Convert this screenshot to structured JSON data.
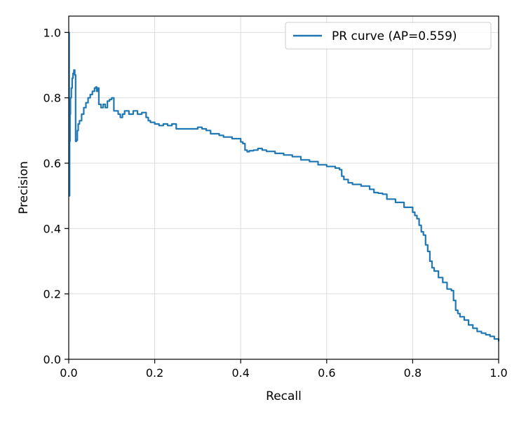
{
  "chart_data": {
    "type": "line",
    "title": "",
    "xlabel": "Recall",
    "ylabel": "Precision",
    "xlim": [
      0.0,
      1.0
    ],
    "ylim": [
      0.0,
      1.05
    ],
    "xticks": [
      0.0,
      0.2,
      0.4,
      0.6,
      0.8,
      1.0
    ],
    "yticks": [
      0.0,
      0.2,
      0.4,
      0.6,
      0.8,
      1.0
    ],
    "xtick_labels": [
      "0.0",
      "0.2",
      "0.4",
      "0.6",
      "0.8",
      "1.0"
    ],
    "ytick_labels": [
      "0.0",
      "0.2",
      "0.4",
      "0.6",
      "0.8",
      "1.0"
    ],
    "grid": true,
    "legend_position": "top-right",
    "series": [
      {
        "name": "PR curve (AP=0.559)",
        "color": "#1f77b4",
        "points": [
          [
            0.0,
            1.0
          ],
          [
            0.001,
            0.5
          ],
          [
            0.002,
            0.667
          ],
          [
            0.003,
            0.75
          ],
          [
            0.004,
            0.8
          ],
          [
            0.006,
            0.83
          ],
          [
            0.008,
            0.86
          ],
          [
            0.01,
            0.875
          ],
          [
            0.012,
            0.885
          ],
          [
            0.014,
            0.87
          ],
          [
            0.016,
            0.667
          ],
          [
            0.018,
            0.67
          ],
          [
            0.02,
            0.7
          ],
          [
            0.022,
            0.72
          ],
          [
            0.025,
            0.73
          ],
          [
            0.03,
            0.75
          ],
          [
            0.035,
            0.77
          ],
          [
            0.04,
            0.785
          ],
          [
            0.045,
            0.8
          ],
          [
            0.05,
            0.81
          ],
          [
            0.055,
            0.82
          ],
          [
            0.06,
            0.83
          ],
          [
            0.063,
            0.833
          ],
          [
            0.065,
            0.82
          ],
          [
            0.068,
            0.83
          ],
          [
            0.07,
            0.78
          ],
          [
            0.075,
            0.77
          ],
          [
            0.08,
            0.78
          ],
          [
            0.085,
            0.77
          ],
          [
            0.09,
            0.79
          ],
          [
            0.095,
            0.795
          ],
          [
            0.1,
            0.8
          ],
          [
            0.105,
            0.76
          ],
          [
            0.11,
            0.76
          ],
          [
            0.115,
            0.75
          ],
          [
            0.12,
            0.74
          ],
          [
            0.125,
            0.75
          ],
          [
            0.13,
            0.76
          ],
          [
            0.14,
            0.75
          ],
          [
            0.15,
            0.76
          ],
          [
            0.16,
            0.75
          ],
          [
            0.17,
            0.755
          ],
          [
            0.18,
            0.74
          ],
          [
            0.185,
            0.73
          ],
          [
            0.19,
            0.725
          ],
          [
            0.2,
            0.72
          ],
          [
            0.21,
            0.715
          ],
          [
            0.22,
            0.72
          ],
          [
            0.23,
            0.715
          ],
          [
            0.24,
            0.72
          ],
          [
            0.25,
            0.705
          ],
          [
            0.26,
            0.705
          ],
          [
            0.27,
            0.705
          ],
          [
            0.28,
            0.705
          ],
          [
            0.29,
            0.705
          ],
          [
            0.3,
            0.71
          ],
          [
            0.31,
            0.705
          ],
          [
            0.32,
            0.7
          ],
          [
            0.33,
            0.69
          ],
          [
            0.34,
            0.69
          ],
          [
            0.35,
            0.685
          ],
          [
            0.36,
            0.68
          ],
          [
            0.37,
            0.68
          ],
          [
            0.38,
            0.675
          ],
          [
            0.39,
            0.675
          ],
          [
            0.4,
            0.665
          ],
          [
            0.405,
            0.66
          ],
          [
            0.41,
            0.64
          ],
          [
            0.415,
            0.635
          ],
          [
            0.42,
            0.638
          ],
          [
            0.43,
            0.64
          ],
          [
            0.44,
            0.645
          ],
          [
            0.45,
            0.64
          ],
          [
            0.46,
            0.636
          ],
          [
            0.48,
            0.63
          ],
          [
            0.5,
            0.625
          ],
          [
            0.52,
            0.62
          ],
          [
            0.54,
            0.61
          ],
          [
            0.56,
            0.605
          ],
          [
            0.58,
            0.595
          ],
          [
            0.6,
            0.59
          ],
          [
            0.62,
            0.585
          ],
          [
            0.63,
            0.58
          ],
          [
            0.635,
            0.56
          ],
          [
            0.64,
            0.55
          ],
          [
            0.65,
            0.54
          ],
          [
            0.66,
            0.535
          ],
          [
            0.68,
            0.53
          ],
          [
            0.7,
            0.52
          ],
          [
            0.71,
            0.51
          ],
          [
            0.72,
            0.508
          ],
          [
            0.73,
            0.505
          ],
          [
            0.74,
            0.49
          ],
          [
            0.76,
            0.48
          ],
          [
            0.78,
            0.465
          ],
          [
            0.8,
            0.45
          ],
          [
            0.805,
            0.44
          ],
          [
            0.81,
            0.43
          ],
          [
            0.815,
            0.41
          ],
          [
            0.82,
            0.39
          ],
          [
            0.825,
            0.38
          ],
          [
            0.83,
            0.35
          ],
          [
            0.835,
            0.33
          ],
          [
            0.84,
            0.3
          ],
          [
            0.845,
            0.28
          ],
          [
            0.85,
            0.27
          ],
          [
            0.86,
            0.25
          ],
          [
            0.87,
            0.235
          ],
          [
            0.88,
            0.215
          ],
          [
            0.89,
            0.21
          ],
          [
            0.895,
            0.18
          ],
          [
            0.9,
            0.15
          ],
          [
            0.905,
            0.14
          ],
          [
            0.91,
            0.13
          ],
          [
            0.92,
            0.12
          ],
          [
            0.93,
            0.105
          ],
          [
            0.94,
            0.095
          ],
          [
            0.95,
            0.085
          ],
          [
            0.96,
            0.08
          ],
          [
            0.97,
            0.075
          ],
          [
            0.98,
            0.07
          ],
          [
            0.99,
            0.062
          ],
          [
            1.0,
            0.055
          ]
        ]
      }
    ]
  }
}
